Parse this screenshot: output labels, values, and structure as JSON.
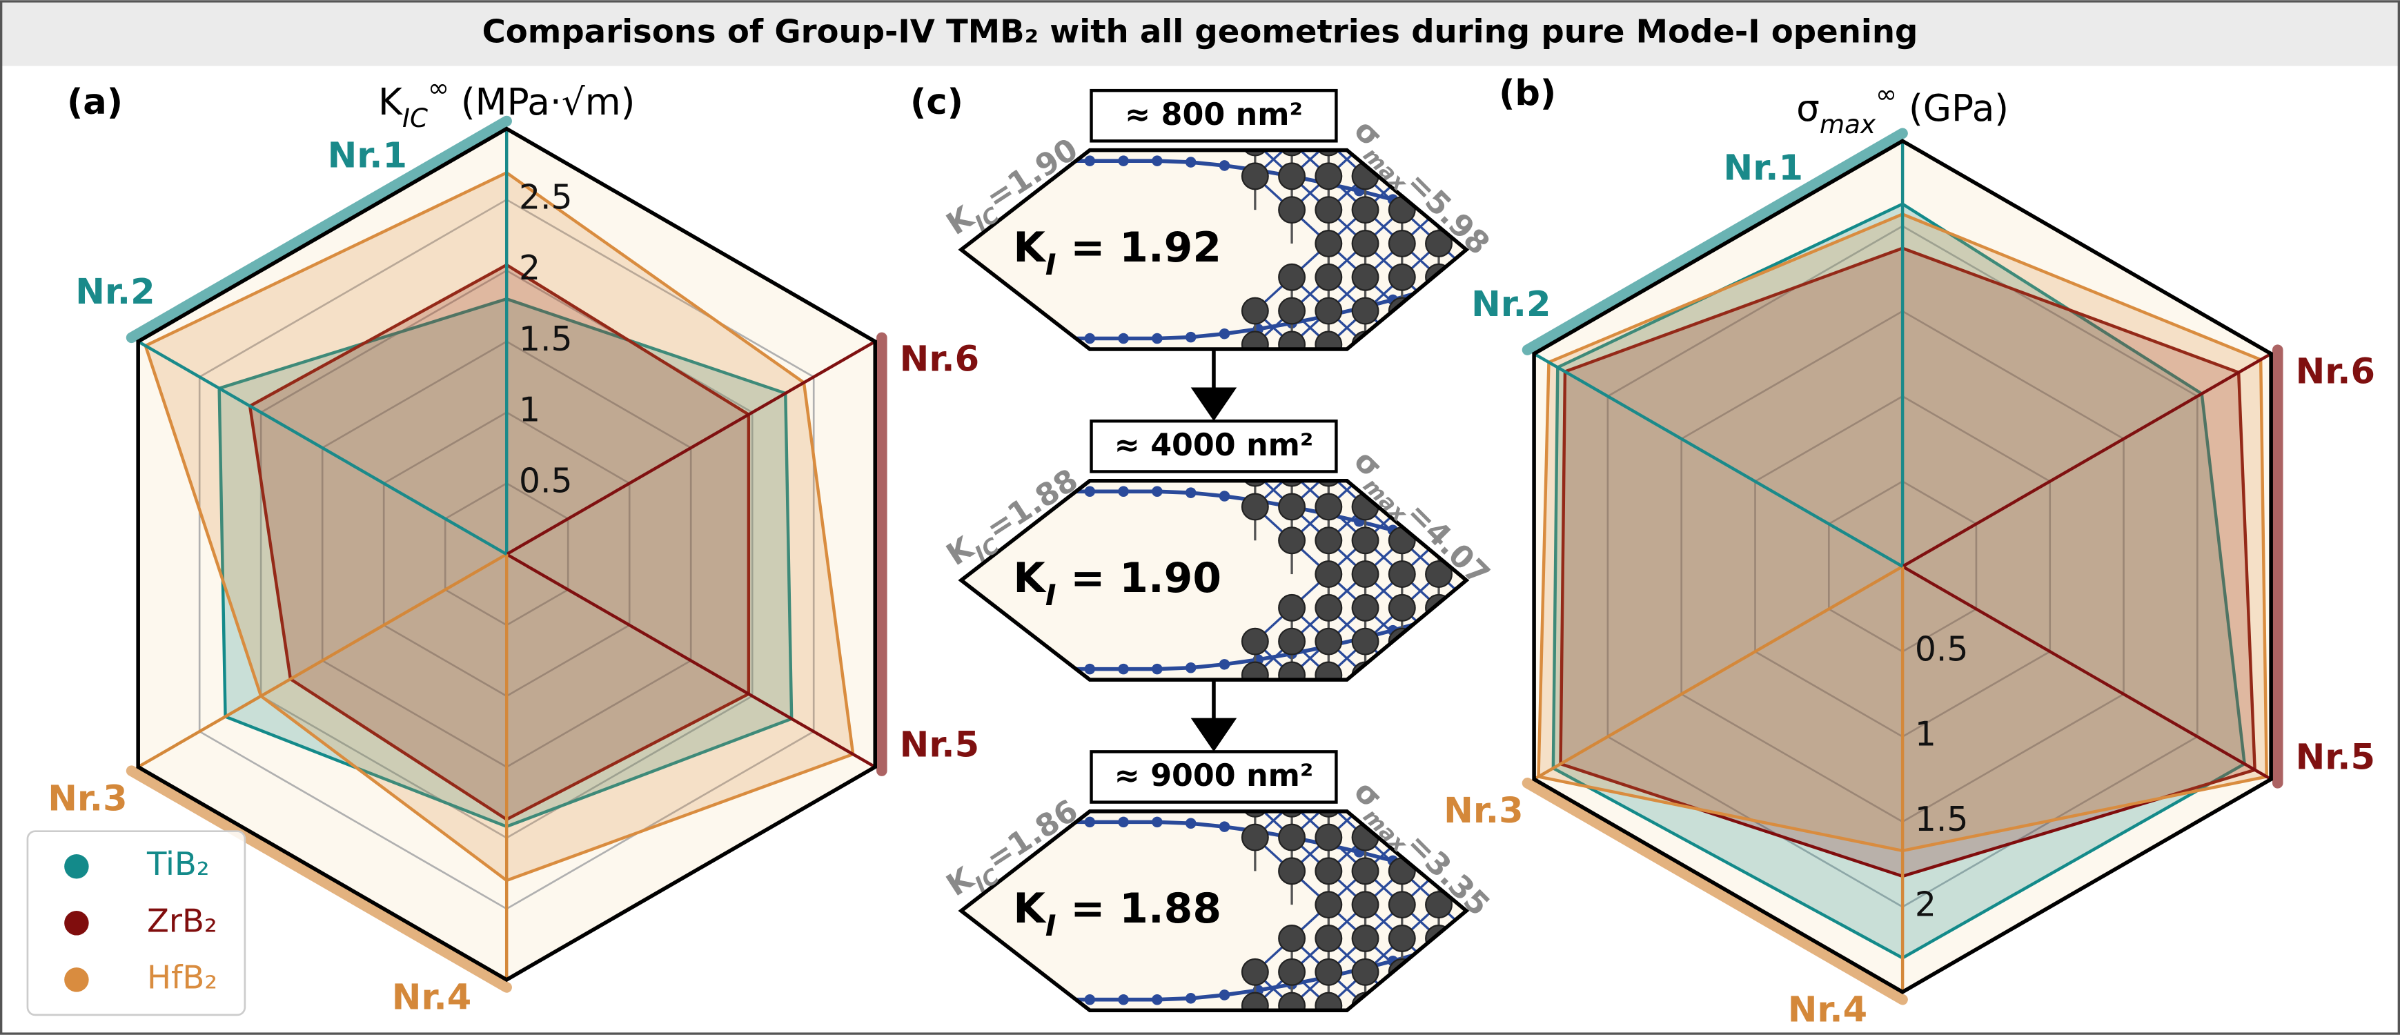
{
  "title": "Comparisons of Group-IV TMB₂ with all geometries during pure Mode-I opening",
  "chart_data": [
    {
      "type": "radar",
      "panel_label": "(a)",
      "axis_title": [
        "K",
        "IC",
        "∞",
        " (MPa·√m)"
      ],
      "categories": [
        "Nr.1",
        "Nr.6",
        "Nr.5",
        "Nr.4",
        "Nr.3",
        "Nr.2"
      ],
      "category_colors": [
        "#1a8a8a",
        "#7f1010",
        "#7f1010",
        "#d4883a",
        "#d4883a",
        "#1a8a8a"
      ],
      "series": [
        {
          "name": "TiB₂",
          "color": "#138a8a",
          "values": [
            1.8,
            2.27,
            2.32,
            1.92,
            2.29,
            2.34
          ]
        },
        {
          "name": "ZrB₂",
          "color": "#800d0d",
          "values": [
            2.04,
            1.97,
            1.97,
            1.87,
            1.76,
            2.09
          ]
        },
        {
          "name": "HfB₂",
          "color": "#d98c3f",
          "values": [
            2.69,
            2.42,
            2.82,
            2.3,
            2.0,
            2.94
          ]
        }
      ],
      "ylim": [
        0,
        3
      ],
      "yticks": [
        0.5,
        1.0,
        1.5,
        2.0,
        2.5
      ],
      "grid": true,
      "legend": "lower left"
    },
    {
      "type": "radar",
      "panel_label": "(b)",
      "axis_title": [
        "σ",
        "max",
        "∞",
        " (GPa)"
      ],
      "categories": [
        "Nr.1",
        "Nr.6",
        "Nr.5",
        "Nr.4",
        "Nr.3",
        "Nr.2"
      ],
      "category_colors": [
        "#1a8a8a",
        "#7f1010",
        "#7f1010",
        "#d4883a",
        "#d4883a",
        "#1a8a8a"
      ],
      "series": [
        {
          "color": "#138a8a",
          "values": [
            2.13,
            2.03,
            2.32,
            2.3,
            2.37,
            2.34
          ]
        },
        {
          "color": "#800d0d",
          "values": [
            1.87,
            2.28,
            2.39,
            1.82,
            2.32,
            2.29
          ]
        },
        {
          "color": "#d98c3f",
          "values": [
            2.07,
            2.43,
            2.47,
            1.67,
            2.47,
            2.4
          ]
        }
      ],
      "ylim": [
        0,
        2.5
      ],
      "yticks": [
        0.5,
        1.0,
        1.5,
        2.0
      ],
      "grid": true
    }
  ],
  "panel_c": {
    "label": "(c)",
    "cells": [
      {
        "area": "≈ 800 nm²",
        "kic": [
          "K",
          "IC",
          "=1.90"
        ],
        "smax": [
          "σ",
          "max",
          "=5.98"
        ],
        "ki": [
          "K",
          "I",
          " = 1.92"
        ]
      },
      {
        "area": "≈ 4000 nm²",
        "kic": [
          "K",
          "IC",
          "=1.88"
        ],
        "smax": [
          "σ",
          "max",
          "=4.07"
        ],
        "ki": [
          "K",
          "I",
          " = 1.90"
        ]
      },
      {
        "area": "≈ 9000 nm²",
        "kic": [
          "K",
          "IC",
          "=1.86"
        ],
        "smax": [
          "σ",
          "max",
          "=3.35"
        ],
        "ki": [
          "K",
          "I",
          " = 1.88"
        ]
      }
    ]
  }
}
